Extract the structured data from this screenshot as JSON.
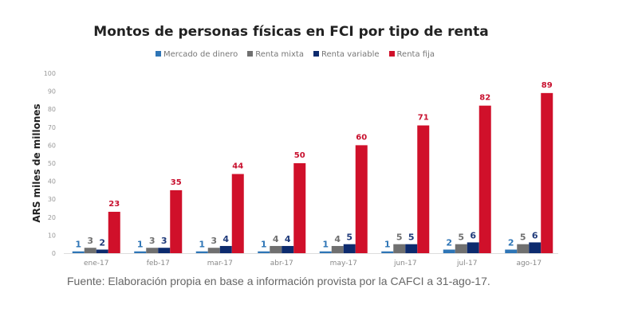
{
  "chart_data": {
    "type": "bar",
    "title": "Montos de personas físicas en FCI por tipo de renta",
    "xlabel": "",
    "ylabel": "ARS miles de millones",
    "ylim": [
      0,
      100
    ],
    "yticks": [
      "0",
      "10",
      "20",
      "30",
      "40",
      "50",
      "60",
      "70",
      "80",
      "90",
      "100"
    ],
    "grid": false,
    "legend_position": "top-center",
    "categories": [
      "ene-17",
      "feb-17",
      "mar-17",
      "abr-17",
      "may-17",
      "jun-17",
      "jul-17",
      "ago-17"
    ],
    "series": [
      {
        "name": "Mercado de dinero",
        "color": "#2e75b6",
        "label_color": "#2e75b6",
        "values": [
          1,
          1,
          1,
          1,
          1,
          1,
          2,
          2
        ]
      },
      {
        "name": "Renta mixta",
        "color": "#707070",
        "label_color": "#707070",
        "values": [
          3,
          3,
          3,
          4,
          4,
          5,
          5,
          5
        ]
      },
      {
        "name": "Renta variable",
        "color": "#0d2b6e",
        "label_color": "#1f3a7a",
        "values": [
          2,
          3,
          4,
          4,
          5,
          5,
          6,
          6
        ]
      },
      {
        "name": "Renta fija",
        "color": "#d0102a",
        "label_color": "#c8102e",
        "values": [
          23,
          35,
          44,
          50,
          60,
          71,
          82,
          89
        ]
      }
    ]
  },
  "source": "Fuente: Elaboración propia en base a información provista por la CAFCI a 31-ago-17."
}
